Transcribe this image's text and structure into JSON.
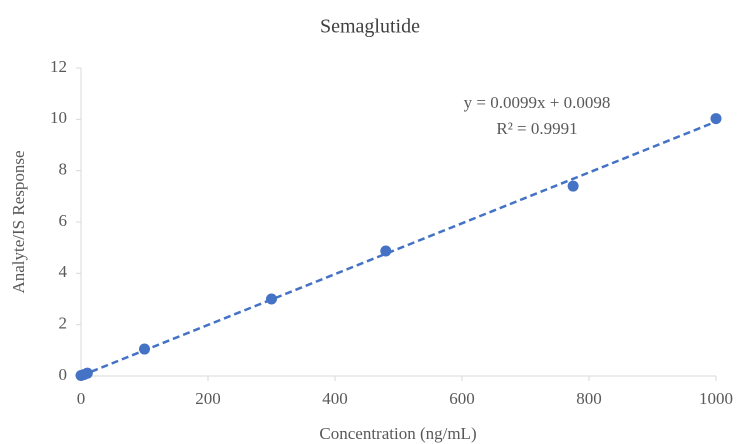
{
  "chart_data": {
    "type": "scatter",
    "title": "Semaglutide",
    "x_label": "Concentration (ng/mL)",
    "y_label": "Analyte/IS Response",
    "x": [
      0,
      5,
      10,
      100,
      300,
      480,
      775,
      1000
    ],
    "values": [
      0.02,
      0.06,
      0.11,
      1.05,
      3.0,
      4.87,
      7.4,
      10.03
    ],
    "color": "#4472c4",
    "xlim": [
      0,
      1000
    ],
    "ylim": [
      0,
      12
    ],
    "xticks": [
      0,
      200,
      400,
      600,
      800,
      1000
    ],
    "yticks": [
      0,
      2,
      4,
      6,
      8,
      10,
      12
    ],
    "grid": false,
    "trendline": {
      "slope": 0.0099,
      "intercept": 0.0098,
      "equation": "y = 0.0099x + 0.0098",
      "r_squared": "R² = 0.9991"
    }
  }
}
